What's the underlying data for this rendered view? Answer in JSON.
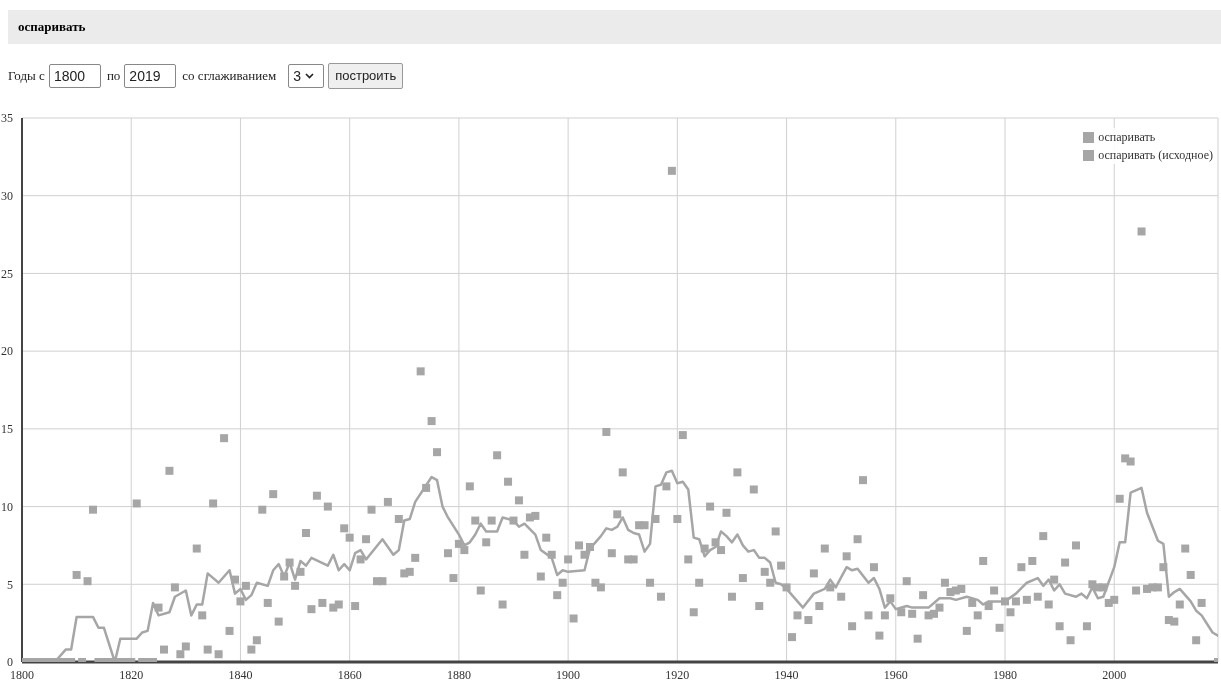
{
  "chart_data": {
    "type": "line",
    "title": "оспаривать",
    "annotations": [
      "Годы с",
      "1800",
      "по",
      "2019",
      "со сглаживанием",
      "3",
      "построить"
    ],
    "xlim": [
      1800,
      2019
    ],
    "xticks": [
      1800,
      1820,
      1840,
      1860,
      1880,
      1900,
      1920,
      1940,
      1960,
      1980,
      2000
    ],
    "ylim": [
      0,
      35
    ],
    "yticks": [
      0,
      5,
      10,
      15,
      20,
      25,
      30,
      35
    ],
    "grid": true,
    "legend": "top right",
    "series": [
      {
        "name": "оспаривать",
        "color": "#a6a6a6",
        "marker": "none",
        "line_style": "solid",
        "x": [
          1800,
          1806,
          1808,
          1809,
          1810,
          1813,
          1814,
          1815,
          1817,
          1818,
          1821,
          1822,
          1823,
          1824,
          1825,
          1827,
          1828,
          1830,
          1831,
          1832,
          1833,
          1834,
          1836,
          1838,
          1839,
          1840,
          1841,
          1842,
          1843,
          1845,
          1846,
          1847,
          1848,
          1849,
          1850,
          1851,
          1852,
          1853,
          1856,
          1857,
          1858,
          1859,
          1860,
          1861,
          1862,
          1863,
          1866,
          1868,
          1869,
          1870,
          1871,
          1872,
          1875,
          1876,
          1877,
          1878,
          1880,
          1881,
          1882,
          1883,
          1884,
          1885,
          1887,
          1888,
          1890,
          1891,
          1892,
          1894,
          1895,
          1897,
          1898,
          1899,
          1900,
          1903,
          1904,
          1905,
          1906,
          1907,
          1908,
          1909,
          1910,
          1911,
          1912,
          1913,
          1914,
          1915,
          1916,
          1917,
          1918,
          1919,
          1920,
          1921,
          1922,
          1923,
          1924,
          1925,
          1926,
          1927,
          1928,
          1929,
          1930,
          1931,
          1932,
          1933,
          1934,
          1935,
          1936,
          1937,
          1938,
          1939,
          1940,
          1943,
          1945,
          1947,
          1948,
          1949,
          1951,
          1952,
          1953,
          1955,
          1956,
          1957,
          1958,
          1959,
          1960,
          1962,
          1963,
          1966,
          1968,
          1970,
          1971,
          1973,
          1975,
          1976,
          1977,
          1978,
          1980,
          1982,
          1984,
          1986,
          1987,
          1988,
          1989,
          1990,
          1991,
          1993,
          1994,
          1995,
          1996,
          1997,
          1998,
          2000,
          2001,
          2002,
          2003,
          2005,
          2006,
          2008,
          2009,
          2010,
          2011,
          2012,
          2014,
          2015,
          2016,
          2018,
          2019
        ],
        "values": [
          0,
          0,
          0.8,
          0.8,
          2.9,
          2.9,
          2.2,
          2.2,
          0,
          1.5,
          1.5,
          1.9,
          2.0,
          3.8,
          3.0,
          3.2,
          4.2,
          4.6,
          3.0,
          3.7,
          3.7,
          5.7,
          5.1,
          5.9,
          4.4,
          4.7,
          4.0,
          4.3,
          5.1,
          4.9,
          5.9,
          6.3,
          5.5,
          6.4,
          5.3,
          6.5,
          6.2,
          6.7,
          6.2,
          6.9,
          5.9,
          6.3,
          5.9,
          7.0,
          7.2,
          6.6,
          7.9,
          6.9,
          7.2,
          9.1,
          9.2,
          10.3,
          11.9,
          11.7,
          10.0,
          9.3,
          8.2,
          7.5,
          7.7,
          8.2,
          8.9,
          8.4,
          8.4,
          9.3,
          9.1,
          8.7,
          8.9,
          8.2,
          7.2,
          6.7,
          5.6,
          5.9,
          5.8,
          5.9,
          7.3,
          7.7,
          8.1,
          8.6,
          8.5,
          8.7,
          9.3,
          8.5,
          8.3,
          8.2,
          7.1,
          7.6,
          11.3,
          11.4,
          12.2,
          12.3,
          11.5,
          11.6,
          11.1,
          8.0,
          7.9,
          6.8,
          7.2,
          7.4,
          8.4,
          8.1,
          7.7,
          8.2,
          7.5,
          7.1,
          7.2,
          6.7,
          6.7,
          6.4,
          5.1,
          5.0,
          4.7,
          3.5,
          4.4,
          4.7,
          5.3,
          4.8,
          6.1,
          5.9,
          6.0,
          5.1,
          5.4,
          4.7,
          3.5,
          3.9,
          3.4,
          3.6,
          3.5,
          3.5,
          4.1,
          4.1,
          4.0,
          4.2,
          4.0,
          3.7,
          3.9,
          3.9,
          3.9,
          4.4,
          5.1,
          5.4,
          4.9,
          5.3,
          4.6,
          5.0,
          4.4,
          4.2,
          4.4,
          4.1,
          4.8,
          4.1,
          4.2,
          6.1,
          7.7,
          7.7,
          10.9,
          11.2,
          9.6,
          7.8,
          7.6,
          4.2,
          4.5,
          4.7,
          3.9,
          3.3,
          3.0,
          1.9,
          1.7
        ]
      },
      {
        "name": "оспаривать (исходное)",
        "type": "scatter",
        "color": "#a6a6a6",
        "marker": "square",
        "x": [
          1800,
          1801,
          1802,
          1803,
          1804,
          1805,
          1806,
          1807,
          1808,
          1809,
          1810,
          1811,
          1812,
          1813,
          1814,
          1815,
          1816,
          1817,
          1818,
          1819,
          1820,
          1821,
          1822,
          1823,
          1824,
          1825,
          1826,
          1827,
          1828,
          1829,
          1830,
          1832,
          1833,
          1834,
          1835,
          1836,
          1837,
          1838,
          1839,
          1840,
          1841,
          1842,
          1843,
          1844,
          1845,
          1846,
          1847,
          1848,
          1849,
          1850,
          1851,
          1852,
          1853,
          1854,
          1855,
          1856,
          1857,
          1858,
          1859,
          1860,
          1861,
          1862,
          1863,
          1864,
          1865,
          1866,
          1867,
          1869,
          1870,
          1871,
          1872,
          1873,
          1874,
          1875,
          1876,
          1878,
          1879,
          1880,
          1881,
          1882,
          1883,
          1884,
          1885,
          1886,
          1887,
          1888,
          1889,
          1890,
          1891,
          1892,
          1893,
          1894,
          1895,
          1896,
          1897,
          1898,
          1899,
          1900,
          1901,
          1902,
          1903,
          1904,
          1905,
          1906,
          1907,
          1908,
          1909,
          1910,
          1911,
          1912,
          1913,
          1914,
          1915,
          1916,
          1917,
          1918,
          1919,
          1920,
          1921,
          1922,
          1923,
          1924,
          1925,
          1926,
          1927,
          1928,
          1929,
          1930,
          1931,
          1932,
          1934,
          1935,
          1936,
          1937,
          1938,
          1939,
          1940,
          1941,
          1942,
          1944,
          1945,
          1946,
          1947,
          1948,
          1950,
          1951,
          1952,
          1953,
          1954,
          1955,
          1956,
          1957,
          1958,
          1959,
          1961,
          1962,
          1963,
          1964,
          1965,
          1966,
          1967,
          1968,
          1969,
          1970,
          1971,
          1972,
          1973,
          1974,
          1975,
          1976,
          1977,
          1978,
          1979,
          1980,
          1981,
          1982,
          1983,
          1984,
          1985,
          1986,
          1987,
          1988,
          1989,
          1990,
          1991,
          1992,
          1993,
          1995,
          1996,
          1997,
          1998,
          1999,
          2000,
          2001,
          2002,
          2003,
          2004,
          2005,
          2006,
          2007,
          2008,
          2009,
          2010,
          2011,
          2012,
          2013,
          2014,
          2015,
          2016,
          2019
        ],
        "values": [
          0,
          0,
          0,
          0,
          0,
          0,
          0,
          0,
          0,
          0,
          5.6,
          0,
          5.2,
          9.8,
          0,
          0,
          0,
          0,
          0,
          0,
          0,
          10.2,
          0,
          0,
          0,
          3.5,
          0.8,
          12.3,
          4.8,
          0.5,
          1.0,
          7.3,
          3.0,
          0.8,
          10.2,
          0.5,
          14.4,
          2.0,
          5.3,
          3.9,
          4.9,
          0.8,
          1.4,
          9.8,
          3.8,
          10.8,
          2.6,
          5.5,
          6.4,
          4.9,
          5.8,
          8.3,
          3.4,
          10.7,
          3.8,
          10.0,
          3.5,
          3.7,
          8.6,
          8.0,
          3.6,
          6.6,
          7.9,
          9.8,
          5.2,
          5.2,
          10.3,
          9.2,
          5.7,
          5.8,
          6.7,
          18.7,
          11.2,
          15.5,
          13.5,
          7.0,
          5.4,
          7.6,
          7.2,
          11.3,
          9.1,
          4.6,
          7.7,
          9.1,
          13.3,
          3.7,
          11.6,
          9.1,
          10.4,
          6.9,
          9.3,
          9.4,
          5.5,
          8.0,
          6.9,
          4.3,
          5.1,
          6.6,
          2.8,
          7.5,
          6.9,
          7.4,
          5.1,
          4.8,
          14.8,
          7.0,
          9.5,
          12.2,
          6.6,
          6.6,
          8.8,
          8.8,
          5.1,
          9.2,
          4.2,
          11.3,
          31.6,
          9.2,
          14.6,
          6.6,
          3.2,
          5.1,
          7.3,
          10.0,
          7.7,
          7.2,
          9.6,
          4.2,
          12.2,
          5.4,
          11.1,
          3.6,
          5.8,
          5.1,
          8.4,
          6.2,
          4.8,
          1.6,
          3.0,
          2.7,
          5.7,
          3.6,
          7.3,
          4.8,
          4.2,
          6.8,
          2.3,
          7.9,
          11.7,
          3.0,
          6.1,
          1.7,
          3.0,
          4.1,
          3.2,
          5.2,
          3.1,
          1.5,
          4.3,
          3.0,
          3.1,
          3.5,
          5.1,
          4.5,
          4.6,
          4.7,
          2.0,
          3.8,
          3.0,
          6.5,
          3.6,
          4.6,
          2.2,
          3.9,
          3.2,
          3.9,
          6.1,
          4.0,
          6.5,
          4.2,
          8.1,
          3.7,
          5.3,
          2.3,
          6.4,
          1.4,
          7.5,
          2.3,
          5.0,
          4.8,
          4.8,
          3.8,
          4.0,
          10.5,
          13.1,
          12.9,
          4.6,
          27.7,
          4.7,
          4.8,
          4.8,
          6.1,
          2.7,
          2.6,
          3.7,
          7.3,
          5.6,
          1.4,
          3.8,
          0
        ]
      }
    ]
  }
}
